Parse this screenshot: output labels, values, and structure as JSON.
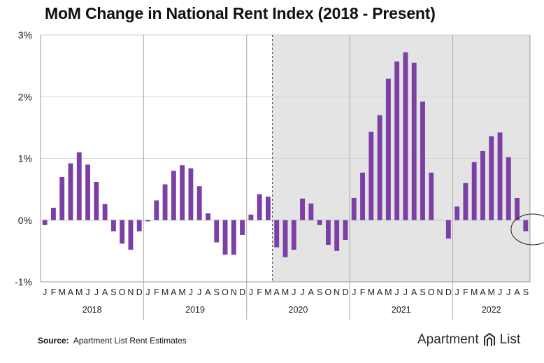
{
  "title": "MoM Change in National Rent Index (2018 - Present)",
  "source": {
    "label": "Source:",
    "text": "Apartment List Rent Estimates"
  },
  "brand": {
    "left": "Apartment",
    "right": "List"
  },
  "colors": {
    "bar": "#7b3fa6",
    "shade": "#e4e4e4",
    "grid": "#aaaaaa"
  },
  "chart_data": {
    "type": "bar",
    "ylim": [
      -1,
      3
    ],
    "yticks": [
      -1,
      0,
      1,
      2,
      3
    ],
    "ytick_labels": [
      "-1%",
      "0%",
      "1%",
      "2%",
      "3%"
    ],
    "month_labels": [
      "J",
      "F",
      "M",
      "A",
      "M",
      "J",
      "J",
      "A",
      "S",
      "O",
      "N",
      "D"
    ],
    "shaded_from": "2020-04",
    "grid": true,
    "annotation": "circle around Sep 2022",
    "years": [
      {
        "year": "2018",
        "values": [
          -0.08,
          0.2,
          0.7,
          0.92,
          1.1,
          0.9,
          0.62,
          0.26,
          -0.18,
          -0.38,
          -0.48,
          -0.18
        ]
      },
      {
        "year": "2019",
        "values": [
          -0.02,
          0.32,
          0.58,
          0.8,
          0.89,
          0.84,
          0.55,
          0.11,
          -0.36,
          -0.56,
          -0.56,
          -0.24
        ]
      },
      {
        "year": "2020",
        "values": [
          0.09,
          0.42,
          0.38,
          -0.44,
          -0.6,
          -0.48,
          0.35,
          0.27,
          -0.08,
          -0.4,
          -0.5,
          -0.32
        ]
      },
      {
        "year": "2021",
        "values": [
          0.36,
          0.77,
          1.43,
          1.7,
          2.29,
          2.57,
          2.72,
          2.55,
          1.92,
          0.77,
          0.0,
          -0.3
        ]
      },
      {
        "year": "2022",
        "values": [
          0.22,
          0.6,
          0.94,
          1.12,
          1.36,
          1.42,
          1.02,
          0.36,
          -0.18
        ]
      }
    ]
  }
}
